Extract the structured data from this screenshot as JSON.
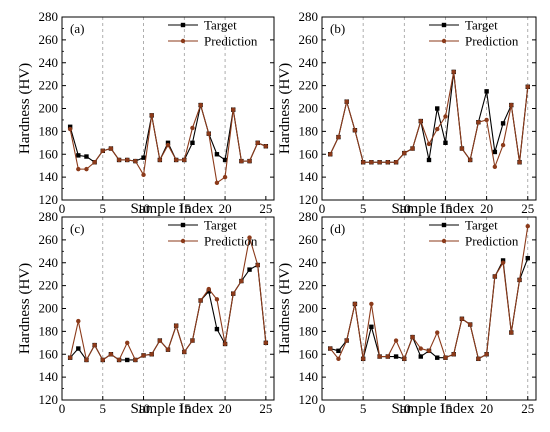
{
  "chart_data": [
    {
      "type": "line",
      "panel_label": "(a)",
      "xlabel": "Sample Index",
      "ylabel": "Hardness (HV)",
      "xlim": [
        0,
        26
      ],
      "ylim": [
        120,
        280
      ],
      "xticks": [
        0,
        5,
        10,
        15,
        20,
        25
      ],
      "yticks": [
        120,
        140,
        160,
        180,
        200,
        220,
        240,
        260,
        280
      ],
      "vlines": [
        5,
        10,
        15,
        20
      ],
      "legend_position": "top-right",
      "x": [
        1,
        2,
        3,
        4,
        5,
        6,
        7,
        8,
        9,
        10,
        11,
        12,
        13,
        14,
        15,
        16,
        17,
        18,
        19,
        20,
        21,
        22,
        23,
        24,
        25
      ],
      "series": [
        {
          "name": "Target",
          "color": "#000000",
          "marker": "square",
          "values": [
            184,
            159,
            158,
            153,
            163,
            165,
            155,
            155,
            154,
            157,
            194,
            155,
            170,
            155,
            155,
            170,
            203,
            178,
            160,
            155,
            199,
            154,
            154,
            170,
            167
          ]
        },
        {
          "name": "Prediction",
          "color": "#8B3A1A",
          "marker": "circle",
          "values": [
            182,
            147,
            147,
            153,
            163,
            165,
            155,
            155,
            154,
            142,
            194,
            155,
            168,
            155,
            155,
            183,
            203,
            178,
            135,
            140,
            199,
            154,
            154,
            170,
            167
          ]
        }
      ]
    },
    {
      "type": "line",
      "panel_label": "(b)",
      "xlabel": "Sample Index",
      "ylabel": "Hardness (HV)",
      "xlim": [
        0,
        26
      ],
      "ylim": [
        120,
        280
      ],
      "xticks": [
        0,
        5,
        10,
        15,
        20,
        25
      ],
      "yticks": [
        120,
        140,
        160,
        180,
        200,
        220,
        240,
        260,
        280
      ],
      "vlines": [
        5,
        10,
        15,
        20,
        25
      ],
      "legend_position": "top-right",
      "x": [
        1,
        2,
        3,
        4,
        5,
        6,
        7,
        8,
        9,
        10,
        11,
        12,
        13,
        14,
        15,
        16,
        17,
        18,
        19,
        20,
        21,
        22,
        23,
        24,
        25
      ],
      "series": [
        {
          "name": "Target",
          "color": "#000000",
          "marker": "square",
          "values": [
            160,
            175,
            206,
            181,
            153,
            153,
            153,
            153,
            153,
            161,
            165,
            189,
            155,
            200,
            170,
            232,
            165,
            155,
            188,
            215,
            162,
            187,
            203,
            153,
            219
          ]
        },
        {
          "name": "Prediction",
          "color": "#8B3A1A",
          "marker": "circle",
          "values": [
            160,
            175,
            206,
            181,
            153,
            153,
            153,
            153,
            153,
            161,
            165,
            189,
            169,
            182,
            193,
            232,
            165,
            155,
            188,
            190,
            149,
            168,
            203,
            153,
            219
          ]
        }
      ]
    },
    {
      "type": "line",
      "panel_label": "(c)",
      "xlabel": "Sample Index",
      "ylabel": "Hardness (HV)",
      "xlim": [
        0,
        26
      ],
      "ylim": [
        120,
        280
      ],
      "xticks": [
        0,
        5,
        10,
        15,
        20,
        25
      ],
      "yticks": [
        120,
        140,
        160,
        180,
        200,
        220,
        240,
        260,
        280
      ],
      "vlines": [
        5,
        10,
        15,
        20,
        25
      ],
      "legend_position": "top-right",
      "x": [
        1,
        2,
        3,
        4,
        5,
        6,
        7,
        8,
        9,
        10,
        11,
        12,
        13,
        14,
        15,
        16,
        17,
        18,
        19,
        20,
        21,
        22,
        23,
        24,
        25
      ],
      "series": [
        {
          "name": "Target",
          "color": "#000000",
          "marker": "square",
          "values": [
            157,
            165,
            155,
            168,
            155,
            160,
            155,
            155,
            155,
            159,
            160,
            172,
            164,
            185,
            162,
            172,
            207,
            215,
            182,
            169,
            213,
            224,
            234,
            238,
            170
          ]
        },
        {
          "name": "Prediction",
          "color": "#8B3A1A",
          "marker": "circle",
          "values": [
            157,
            189,
            155,
            168,
            155,
            160,
            155,
            170,
            155,
            159,
            160,
            172,
            164,
            185,
            162,
            172,
            207,
            217,
            208,
            169,
            213,
            224,
            262,
            238,
            170
          ]
        }
      ]
    },
    {
      "type": "line",
      "panel_label": "(d)",
      "xlabel": "Sample Index",
      "ylabel": "Hardness (HV)",
      "xlim": [
        0,
        26
      ],
      "ylim": [
        120,
        280
      ],
      "xticks": [
        0,
        5,
        10,
        15,
        20,
        25
      ],
      "yticks": [
        120,
        140,
        160,
        180,
        200,
        220,
        240,
        260,
        280
      ],
      "vlines": [
        5,
        10,
        15,
        20,
        25
      ],
      "legend_position": "top-right",
      "x": [
        1,
        2,
        3,
        4,
        5,
        6,
        7,
        8,
        9,
        10,
        11,
        12,
        13,
        14,
        15,
        16,
        17,
        18,
        19,
        20,
        21,
        22,
        23,
        24,
        25
      ],
      "series": [
        {
          "name": "Target",
          "color": "#000000",
          "marker": "square",
          "values": [
            165,
            163,
            172,
            204,
            156,
            184,
            158,
            158,
            158,
            156,
            175,
            158,
            163,
            157,
            157,
            160,
            191,
            186,
            156,
            160,
            228,
            242,
            179,
            225,
            244
          ]
        },
        {
          "name": "Prediction",
          "color": "#8B3A1A",
          "marker": "circle",
          "values": [
            165,
            156,
            172,
            204,
            156,
            204,
            158,
            158,
            172,
            156,
            175,
            165,
            163,
            179,
            157,
            160,
            191,
            186,
            156,
            160,
            228,
            240,
            179,
            225,
            272
          ]
        }
      ]
    }
  ]
}
